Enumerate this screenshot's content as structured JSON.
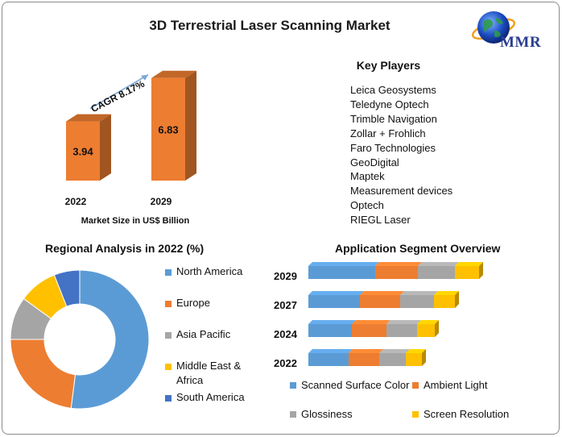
{
  "title": "3D Terrestrial Laser Scanning Market",
  "logo_text": "MMR",
  "colors": {
    "orange": "#ed7d31",
    "blue": "#5b9bd5",
    "gray": "#a5a5a5",
    "yellow": "#ffc000",
    "dark_blue": "#4472c4"
  },
  "key_players": {
    "title": "Key Players",
    "items": [
      "Leica Geosystems",
      "Teledyne Optech",
      "Trimble Navigation",
      "Zollar + Frohlich",
      "Faro Technologies",
      "GeoDigital",
      "Maptek",
      "Measurement devices",
      "Optech",
      "RIEGL Laser"
    ]
  },
  "chart_data": [
    {
      "type": "bar",
      "categories": [
        "2022",
        "2029"
      ],
      "values": [
        3.94,
        6.83
      ],
      "data_labels": [
        "3.94",
        "6.83"
      ],
      "xlabel": "Market Size in US$ Billion",
      "annotation": "CAGR 8.17%",
      "ylim": [
        0,
        7.5
      ]
    },
    {
      "type": "pie",
      "style": "donut",
      "title": "Regional Analysis in 2022 (%)",
      "categories": [
        "North America",
        "Europe",
        "Asia Pacific",
        "Middle East & Africa",
        "South America"
      ],
      "legend_lines": [
        [
          "North America"
        ],
        [
          "Europe"
        ],
        [
          "Asia Pacific"
        ],
        [
          "Middle East &",
          "Africa"
        ],
        [
          "South America"
        ]
      ],
      "values": [
        52,
        23,
        10,
        9,
        6
      ],
      "legend": "right"
    },
    {
      "type": "bar",
      "orientation": "horizontal",
      "stacked": true,
      "title": "Application Segment Overview",
      "categories": [
        "2029",
        "2027",
        "2024",
        "2022"
      ],
      "series": [
        {
          "name": "Scanned Surface Color",
          "values": [
            83,
            64,
            54,
            50
          ]
        },
        {
          "name": "Ambient Light",
          "values": [
            53,
            50,
            43,
            38
          ]
        },
        {
          "name": "Glossiness",
          "values": [
            46,
            42,
            38,
            33
          ]
        },
        {
          "name": "Screen Resolution",
          "values": [
            30,
            26,
            22,
            20
          ]
        }
      ],
      "legend": "bottom"
    }
  ]
}
